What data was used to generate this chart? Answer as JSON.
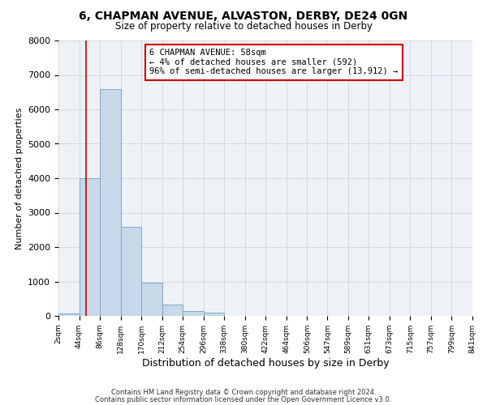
{
  "title": "6, CHAPMAN AVENUE, ALVASTON, DERBY, DE24 0GN",
  "subtitle": "Size of property relative to detached houses in Derby",
  "xlabel": "Distribution of detached houses by size in Derby",
  "ylabel": "Number of detached properties",
  "bin_edges": [
    2,
    44,
    86,
    128,
    170,
    212,
    254,
    296,
    338,
    380,
    422,
    464,
    506,
    547,
    589,
    631,
    673,
    715,
    757,
    799,
    841
  ],
  "bar_heights": [
    60,
    4000,
    6600,
    2600,
    970,
    340,
    140,
    85,
    0,
    0,
    0,
    0,
    0,
    0,
    0,
    0,
    0,
    0,
    0,
    0
  ],
  "bar_color": "#c8d8e8",
  "bar_edge_color": "#7aaacb",
  "property_line_x": 58,
  "property_line_color": "#cc0000",
  "ylim": [
    0,
    8000
  ],
  "annotation_box_text": "6 CHAPMAN AVENUE: 58sqm\n← 4% of detached houses are smaller (592)\n96% of semi-detached houses are larger (13,912) →",
  "annotation_box_color": "#cc0000",
  "footer_line1": "Contains HM Land Registry data © Crown copyright and database right 2024.",
  "footer_line2": "Contains public sector information licensed under the Open Government Licence v3.0.",
  "background_color": "#ffffff",
  "plot_background_color": "#eef2f7",
  "grid_color": "#cccccc",
  "title_fontsize": 10,
  "subtitle_fontsize": 8.5,
  "xlabel_fontsize": 9,
  "ylabel_fontsize": 8,
  "ytick_fontsize": 8,
  "xtick_fontsize": 6.5,
  "footer_fontsize": 6
}
